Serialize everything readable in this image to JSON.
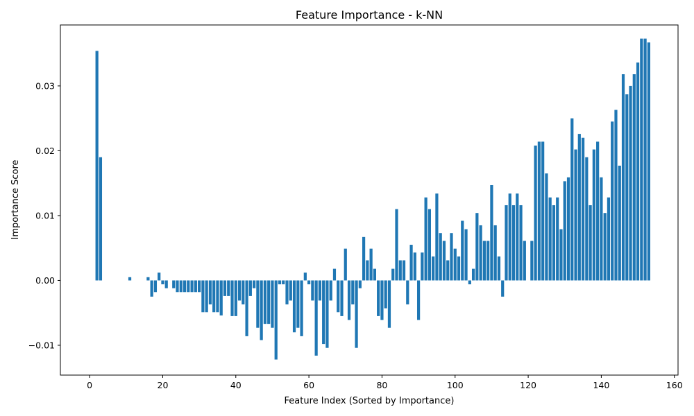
{
  "chart_data": {
    "type": "bar",
    "title": "Feature Importance - k-NN",
    "xlabel": "Feature Index (Sorted by Importance)",
    "ylabel": "Importance Score",
    "xlim": [
      -8,
      161
    ],
    "ylim": [
      -0.0146,
      0.0394
    ],
    "xticks": [
      0,
      20,
      40,
      60,
      80,
      100,
      120,
      140,
      160
    ],
    "xtick_labels": [
      "0",
      "20",
      "40",
      "60",
      "80",
      "100",
      "120",
      "140",
      "160"
    ],
    "yticks": [
      -0.01,
      0.0,
      0.01,
      0.02,
      0.03
    ],
    "ytick_labels": [
      "−0.01",
      "0.00",
      "0.01",
      "0.02",
      "0.03"
    ],
    "grid": false,
    "bar_color": "#1f77b4",
    "x": [
      0,
      1,
      2,
      3,
      4,
      5,
      6,
      7,
      8,
      9,
      10,
      11,
      12,
      13,
      14,
      15,
      16,
      17,
      18,
      19,
      20,
      21,
      22,
      23,
      24,
      25,
      26,
      27,
      28,
      29,
      30,
      31,
      32,
      33,
      34,
      35,
      36,
      37,
      38,
      39,
      40,
      41,
      42,
      43,
      44,
      45,
      46,
      47,
      48,
      49,
      50,
      51,
      52,
      53,
      54,
      55,
      56,
      57,
      58,
      59,
      60,
      61,
      62,
      63,
      64,
      65,
      66,
      67,
      68,
      69,
      70,
      71,
      72,
      73,
      74,
      75,
      76,
      77,
      78,
      79,
      80,
      81,
      82,
      83,
      84,
      85,
      86,
      87,
      88,
      89,
      90,
      91,
      92,
      93,
      94,
      95,
      96,
      97,
      98,
      99,
      100,
      101,
      102,
      103,
      104,
      105,
      106,
      107,
      108,
      109,
      110,
      111,
      112,
      113,
      114,
      115,
      116,
      117,
      118,
      119,
      120,
      121,
      122,
      123,
      124,
      125,
      126,
      127,
      128,
      129,
      130,
      131,
      132,
      133,
      134,
      135,
      136,
      137,
      138,
      139,
      140,
      141,
      142,
      143,
      144,
      145,
      146,
      147,
      148,
      149,
      150,
      151,
      152,
      153
    ],
    "values": [
      0,
      0,
      0.0354,
      0.019,
      0,
      0,
      0,
      0,
      0,
      0,
      0,
      0.0005,
      0,
      0,
      0,
      0,
      0.0005,
      -0.0025,
      -0.0018,
      0.0012,
      -0.0006,
      -0.0012,
      0,
      -0.0012,
      -0.0018,
      -0.0018,
      -0.0018,
      -0.0018,
      -0.0018,
      -0.0018,
      -0.0018,
      -0.0049,
      -0.0049,
      -0.0037,
      -0.0049,
      -0.0049,
      -0.0054,
      -0.0024,
      -0.0024,
      -0.0055,
      -0.0055,
      -0.0031,
      -0.0037,
      -0.0086,
      -0.0024,
      -0.0012,
      -0.0073,
      -0.0092,
      -0.0067,
      -0.0067,
      -0.0073,
      -0.0122,
      -0.0006,
      -0.0006,
      -0.0037,
      -0.0031,
      -0.008,
      -0.0073,
      -0.0086,
      0.0012,
      -0.0006,
      -0.0031,
      -0.0116,
      -0.0031,
      -0.0098,
      -0.0104,
      -0.0031,
      0.0018,
      -0.0049,
      -0.0055,
      0.0049,
      -0.0061,
      -0.0037,
      -0.0104,
      -0.0012,
      0.0067,
      0.0031,
      0.0049,
      0.0018,
      -0.0055,
      -0.0061,
      -0.0043,
      -0.0073,
      0.0018,
      0.011,
      0.0031,
      0.0031,
      -0.0037,
      0.0055,
      0.0043,
      -0.0061,
      0.0043,
      0.0128,
      0.011,
      0.0037,
      0.0134,
      0.0073,
      0.0061,
      0.0031,
      0.0073,
      0.0049,
      0.0037,
      0.0092,
      0.0079,
      -0.0006,
      0.0018,
      0.0104,
      0.0085,
      0.0061,
      0.0061,
      0.0147,
      0.0085,
      0.0037,
      -0.0025,
      0.0116,
      0.0134,
      0.0116,
      0.0134,
      0.0116,
      0.0061,
      0,
      0.0061,
      0.0208,
      0.0214,
      0.0214,
      0.0165,
      0.0128,
      0.0116,
      0.0128,
      0.0079,
      0.0153,
      0.0159,
      0.025,
      0.0202,
      0.0226,
      0.022,
      0.019,
      0.0116,
      0.0202,
      0.0214,
      0.0159,
      0.0104,
      0.0128,
      0.0245,
      0.0263,
      0.0177,
      0.0318,
      0.0287,
      0.03,
      0.0318,
      0.0336,
      0.0373,
      0.0373,
      0.0367
    ]
  }
}
